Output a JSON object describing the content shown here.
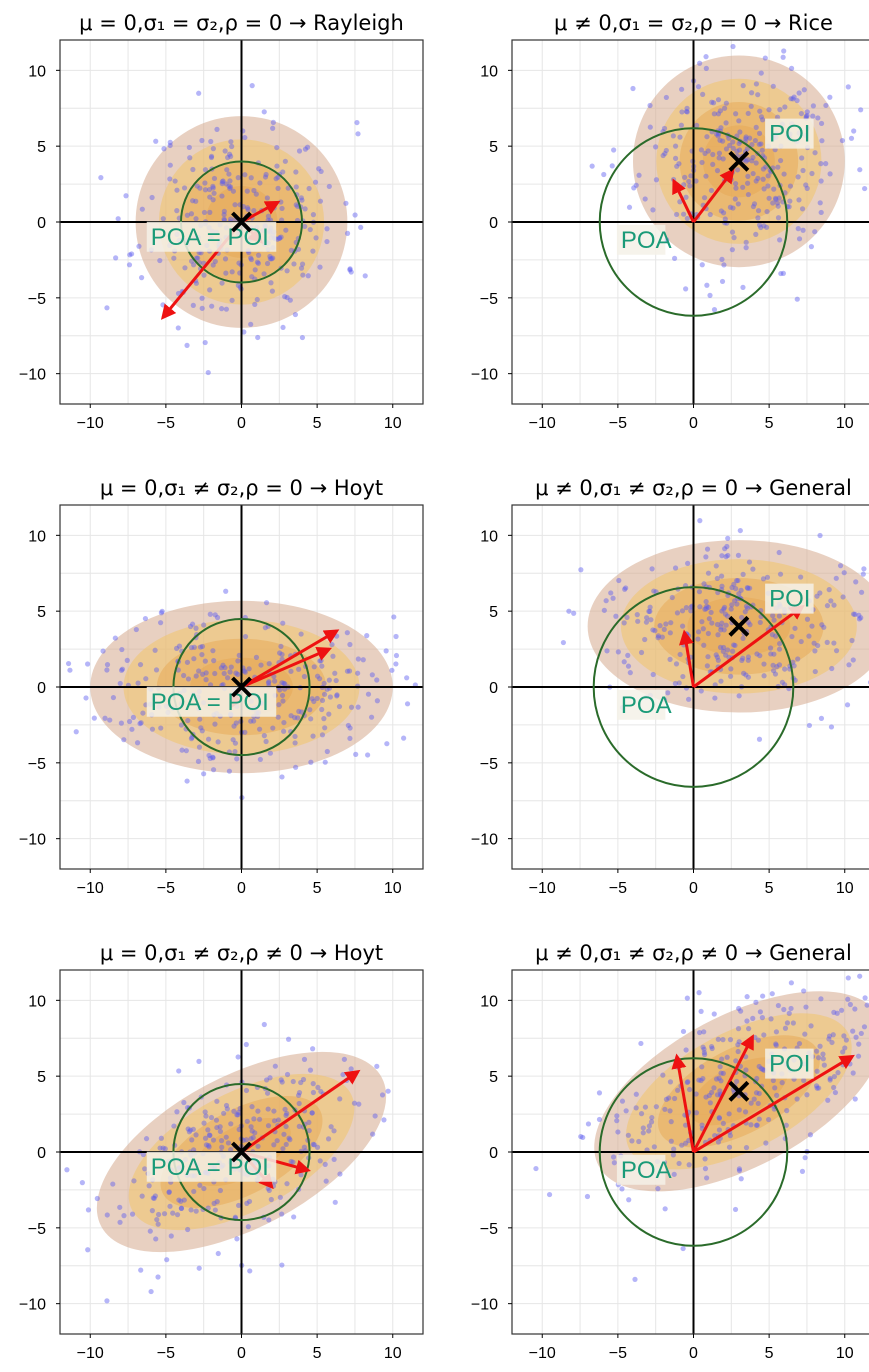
{
  "colors": {
    "points": "#5b5bf0",
    "contour_outer": "#d6a98e",
    "contour_mid": "#f0c46a",
    "contour_inner": "#e6a34e",
    "circle": "#2a6b2a",
    "arrow": "#ee1111",
    "label_text": "#1a9a78",
    "label_bg": "#f4f1e8",
    "frame": "#333333",
    "grid": "#e6e6e6"
  },
  "chart_data": [
    {
      "type": "scatter",
      "title": "μ = 0,σ₁ = σ₂,ρ = 0 → Rayleigh",
      "xlim": [
        -12,
        12
      ],
      "ylim": [
        -12,
        12
      ],
      "xticks": [
        -10,
        -5,
        0,
        5,
        10
      ],
      "yticks": [
        -10,
        -5,
        0,
        5,
        10
      ],
      "grid": true,
      "poi": [
        0,
        0
      ],
      "circle_radius": 4,
      "ellipse": {
        "cx": 0,
        "cy": 0,
        "rx": 7,
        "ry": 7,
        "angle_deg": 0
      },
      "arrows": [
        [
          2.4,
          1.3
        ],
        [
          1.3,
          -1.3
        ],
        [
          -5.2,
          -6.3
        ]
      ],
      "labels": [
        {
          "text": "POA = POI",
          "x": -6,
          "y": -1.5
        }
      ],
      "cloud": {
        "n": 300,
        "sx": 3.3,
        "sy": 3.3,
        "rho": 0,
        "seed": 11
      }
    },
    {
      "type": "scatter",
      "title": "μ ≠ 0,σ₁ = σ₂,ρ = 0 → Rice",
      "xlim": [
        -12,
        12
      ],
      "ylim": [
        -12,
        12
      ],
      "xticks": [
        -10,
        -5,
        0,
        5,
        10
      ],
      "yticks": [
        -10,
        -5,
        0,
        5,
        10
      ],
      "grid": true,
      "poi": [
        3,
        4
      ],
      "circle_radius": 6.2,
      "ellipse": {
        "cx": 3,
        "cy": 4,
        "rx": 7,
        "ry": 7,
        "angle_deg": 0
      },
      "arrows": [
        [
          2.6,
          3.4
        ],
        [
          -1.3,
          2.7
        ]
      ],
      "labels": [
        {
          "text": "POI",
          "x": 5,
          "y": 5.3
        },
        {
          "text": "POA",
          "x": -4.8,
          "y": -1.7
        }
      ],
      "cloud": {
        "n": 300,
        "sx": 3.3,
        "sy": 3.3,
        "rho": 0,
        "seed": 23
      }
    },
    {
      "type": "scatter",
      "title": "μ = 0,σ₁ ≠ σ₂,ρ = 0 → Hoyt",
      "xlim": [
        -12,
        12
      ],
      "ylim": [
        -12,
        12
      ],
      "xticks": [
        -10,
        -5,
        0,
        5,
        10
      ],
      "yticks": [
        -10,
        -5,
        0,
        5,
        10
      ],
      "grid": true,
      "poi": [
        0,
        0
      ],
      "circle_radius": 4.5,
      "ellipse": {
        "cx": 0,
        "cy": 0,
        "rx": 10,
        "ry": 5.7,
        "angle_deg": 0
      },
      "arrows": [
        [
          6.3,
          3.7
        ],
        [
          5.8,
          2.5
        ],
        [
          -0.7,
          -1.3
        ]
      ],
      "labels": [
        {
          "text": "POA = POI",
          "x": -6,
          "y": -1.5
        }
      ],
      "cloud": {
        "n": 300,
        "sx": 4.8,
        "sy": 2.6,
        "rho": 0,
        "seed": 37
      }
    },
    {
      "type": "scatter",
      "title": "μ ≠ 0,σ₁ ≠ σ₂,ρ = 0 → General",
      "xlim": [
        -12,
        12
      ],
      "ylim": [
        -12,
        12
      ],
      "xticks": [
        -10,
        -5,
        0,
        5,
        10
      ],
      "yticks": [
        -10,
        -5,
        0,
        5,
        10
      ],
      "grid": true,
      "poi": [
        3,
        4
      ],
      "circle_radius": 6.6,
      "ellipse": {
        "cx": 3,
        "cy": 4,
        "rx": 10,
        "ry": 5.7,
        "angle_deg": 0
      },
      "arrows": [
        [
          7.2,
          5.3
        ],
        [
          -0.6,
          3.6
        ]
      ],
      "labels": [
        {
          "text": "POI",
          "x": 5,
          "y": 5.3
        },
        {
          "text": "POA",
          "x": -4.8,
          "y": -1.7
        }
      ],
      "cloud": {
        "n": 300,
        "sx": 4.8,
        "sy": 2.6,
        "rho": 0,
        "seed": 41
      }
    },
    {
      "type": "scatter",
      "title": "μ = 0,σ₁ ≠ σ₂,ρ ≠ 0 → Hoyt",
      "xlim": [
        -12,
        12
      ],
      "ylim": [
        -12,
        12
      ],
      "xticks": [
        -10,
        -5,
        0,
        5,
        10
      ],
      "yticks": [
        -10,
        -5,
        0,
        5,
        10
      ],
      "grid": true,
      "poi": [
        0,
        0
      ],
      "circle_radius": 4.5,
      "ellipse": {
        "cx": 0,
        "cy": 0,
        "rx": 10.5,
        "ry": 5,
        "angle_deg": 28
      },
      "arrows": [
        [
          7.7,
          5.3
        ],
        [
          4.4,
          -1.2
        ],
        [
          2,
          -2.3
        ]
      ],
      "labels": [
        {
          "text": "POA = POI",
          "x": -6,
          "y": -1.5
        }
      ],
      "cloud": {
        "n": 300,
        "sx": 4.6,
        "sy": 3.4,
        "rho": 0.55,
        "seed": 53
      }
    },
    {
      "type": "scatter",
      "title": "μ ≠ 0,σ₁ ≠ σ₂,ρ ≠ 0 → General",
      "xlim": [
        -12,
        12
      ],
      "ylim": [
        -12,
        12
      ],
      "xticks": [
        -10,
        -5,
        0,
        5,
        10
      ],
      "yticks": [
        -10,
        -5,
        0,
        5,
        10
      ],
      "grid": true,
      "poi": [
        3,
        4
      ],
      "circle_radius": 6.2,
      "ellipse": {
        "cx": 3,
        "cy": 4,
        "rx": 10.5,
        "ry": 5,
        "angle_deg": 28
      },
      "arrows": [
        [
          10.5,
          6.3
        ],
        [
          3.9,
          7.6
        ],
        [
          -1.1,
          6.3
        ]
      ],
      "labels": [
        {
          "text": "POI",
          "x": 5,
          "y": 5.3
        },
        {
          "text": "POA",
          "x": -4.8,
          "y": -1.7
        }
      ],
      "cloud": {
        "n": 300,
        "sx": 4.6,
        "sy": 3.4,
        "rho": 0.55,
        "seed": 67
      }
    }
  ]
}
